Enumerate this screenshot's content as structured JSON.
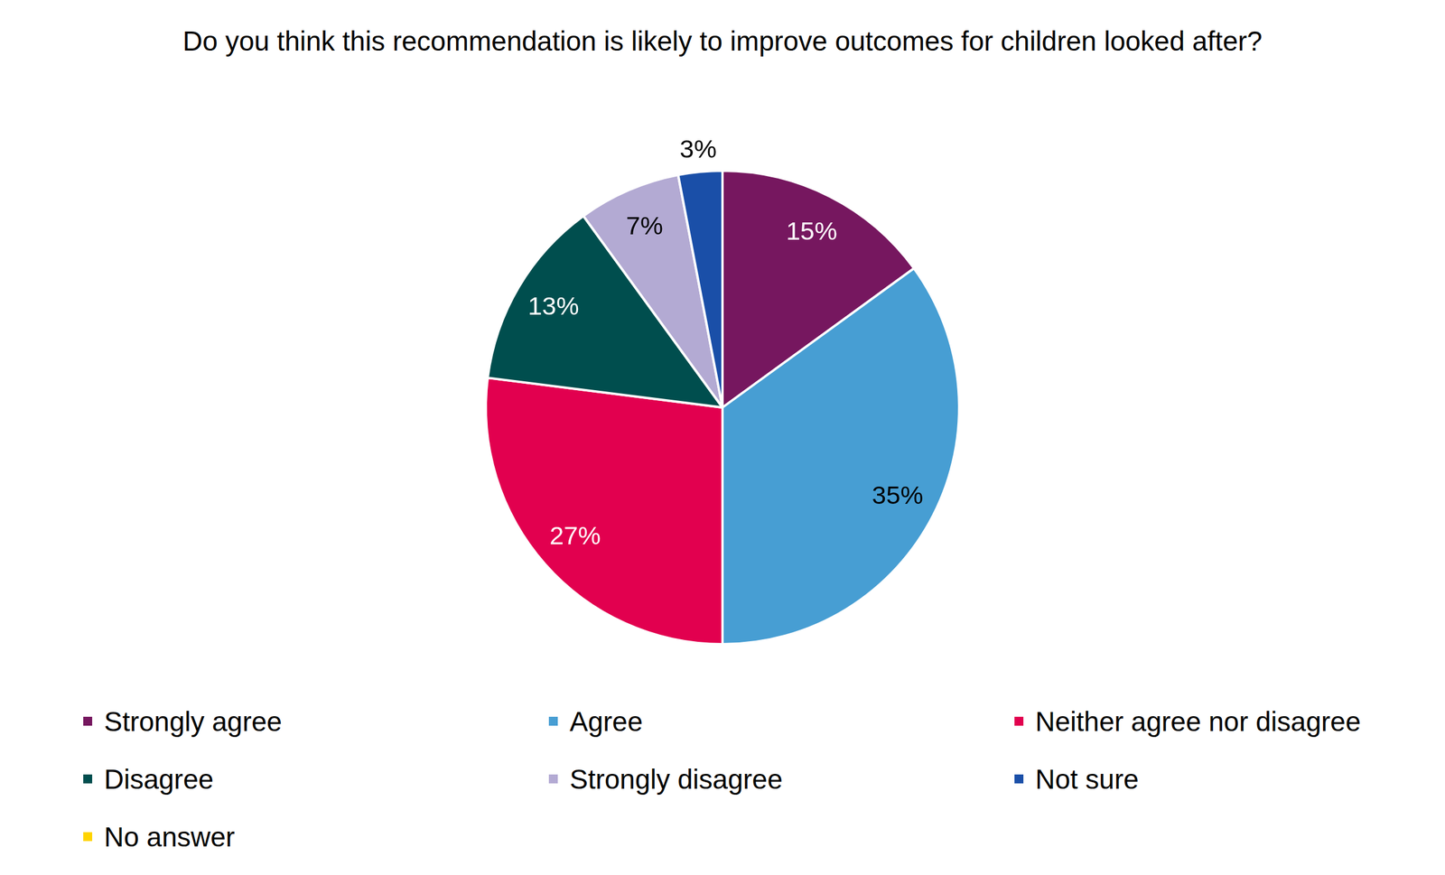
{
  "chart_data": {
    "type": "pie",
    "title": "Do you think this recommendation is likely to improve outcomes for children looked after?",
    "categories": [
      "Strongly agree",
      "Agree",
      "Neither agree nor disagree",
      "Disagree",
      "Strongly disagree",
      "Not sure",
      "No answer"
    ],
    "values": [
      15,
      35,
      27,
      13,
      7,
      3,
      0
    ],
    "value_labels": [
      "15%",
      "35%",
      "27%",
      "13%",
      "7%",
      "3%",
      null
    ],
    "colors": [
      "#76175f",
      "#479ed3",
      "#e2004f",
      "#004e4e",
      "#b3aad3",
      "#1a4fa8",
      "#ffd400"
    ],
    "data_labels": true,
    "legend": "bottom"
  }
}
